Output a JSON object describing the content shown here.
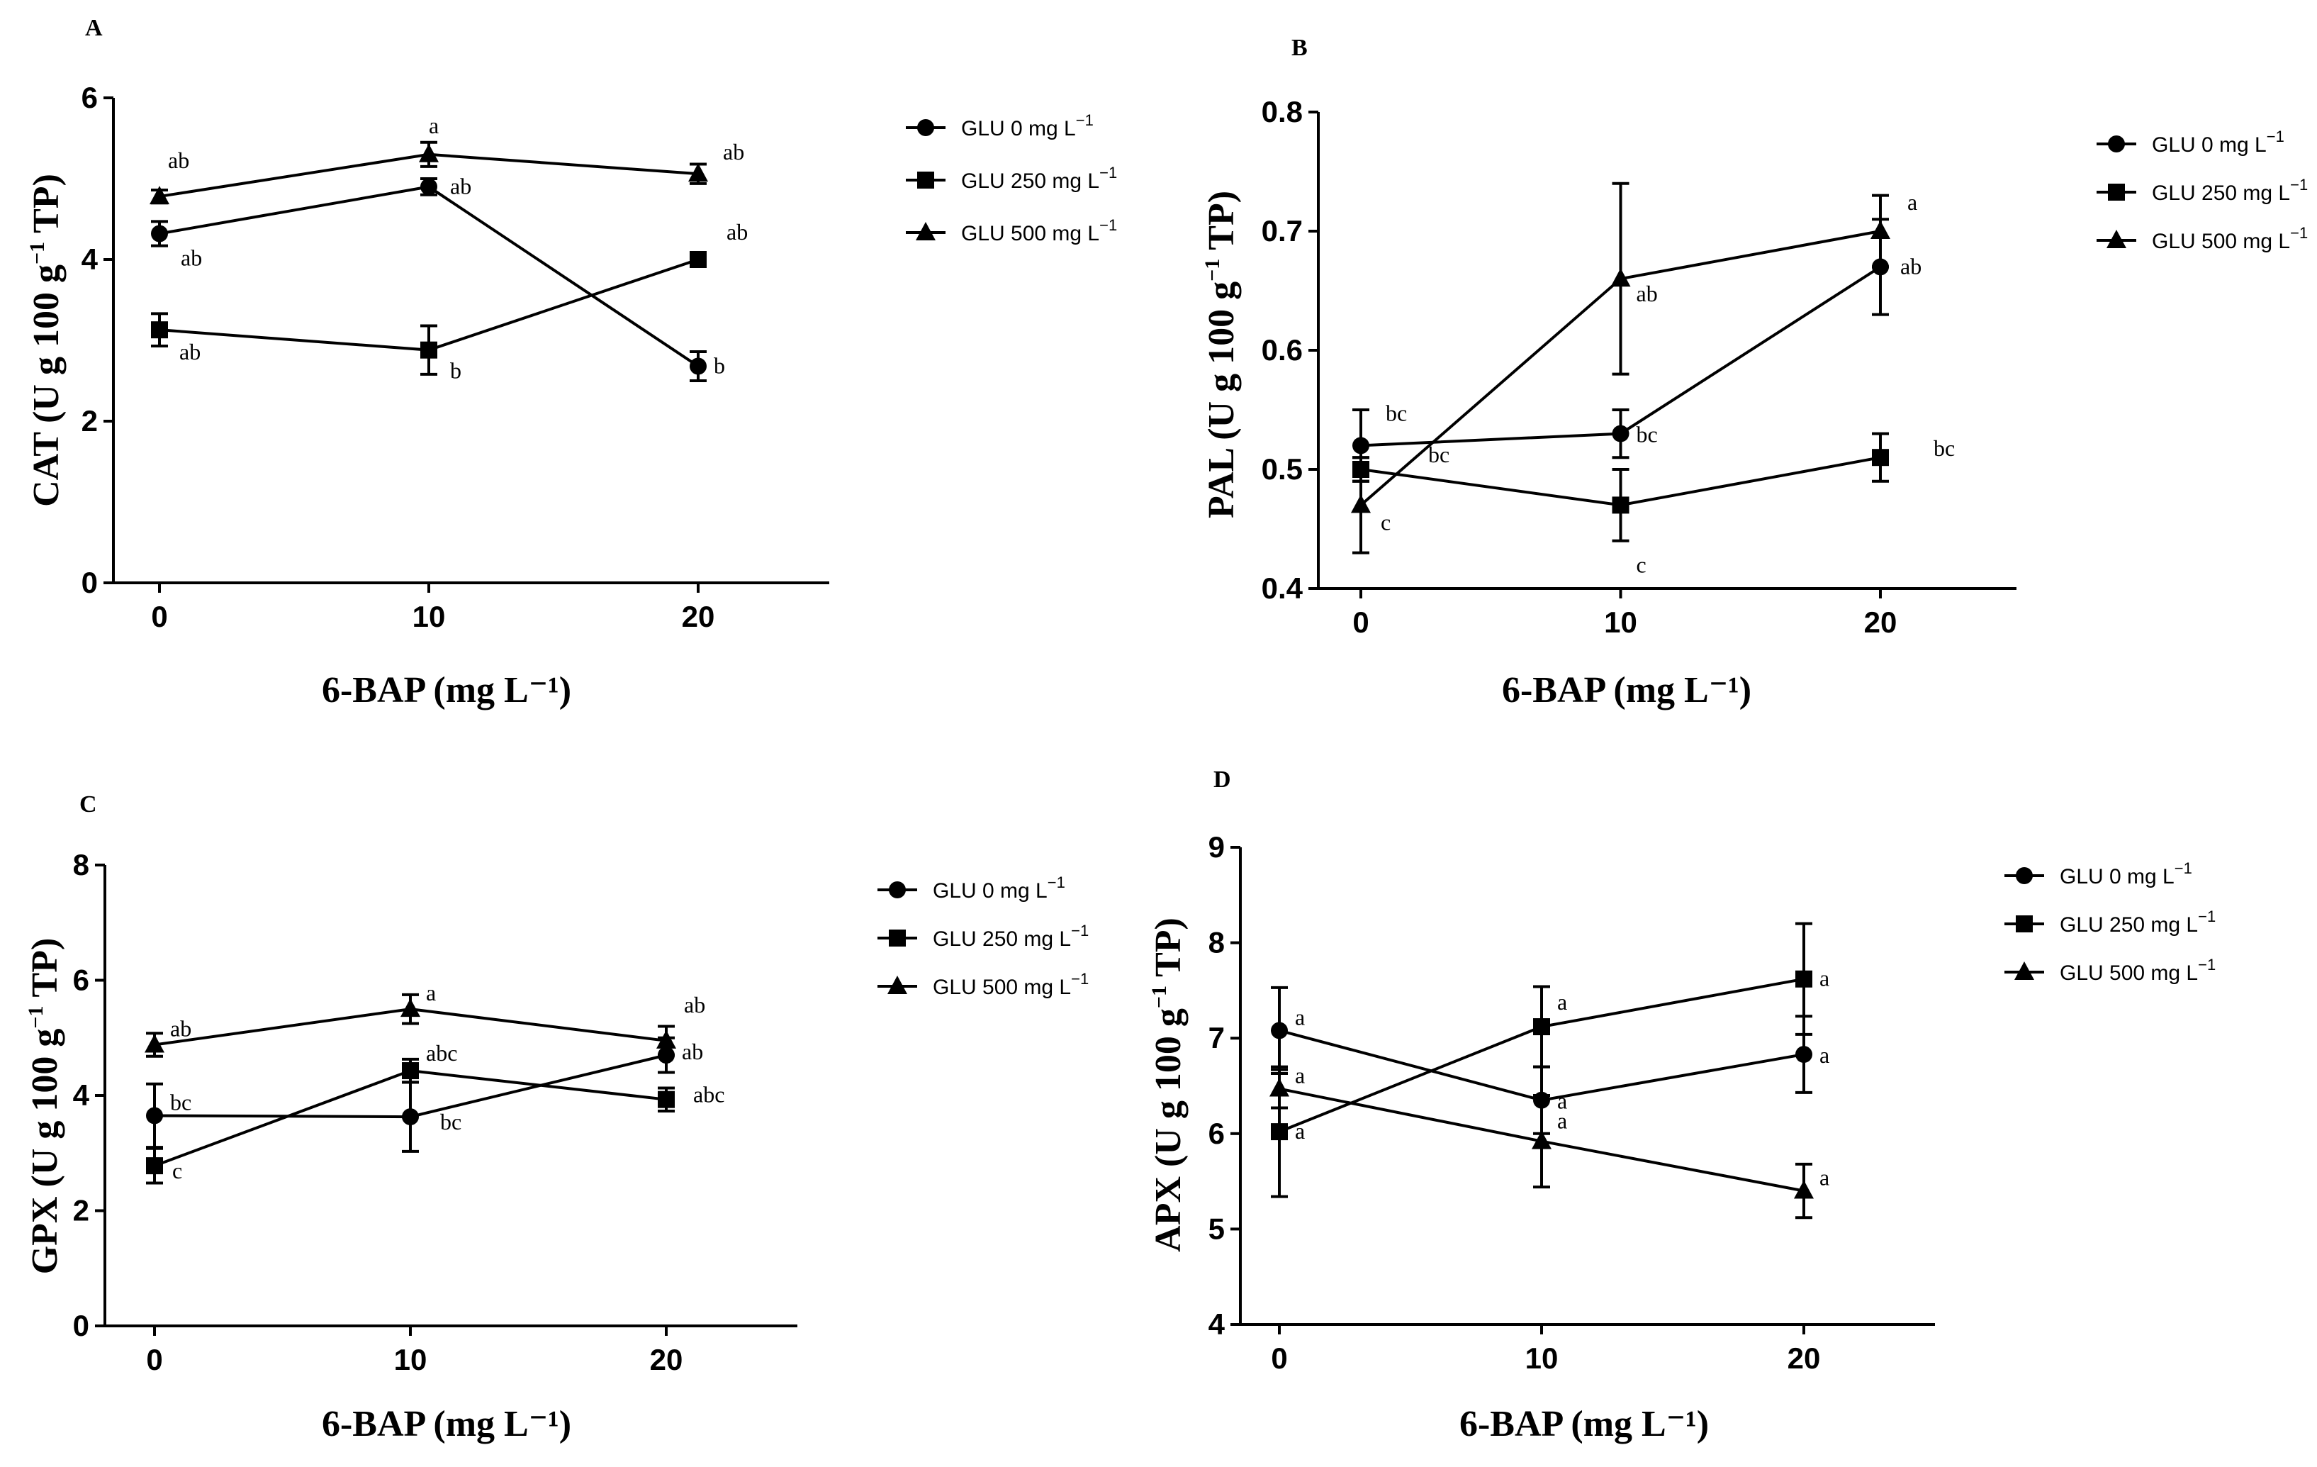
{
  "chart_data": [
    {
      "panel": "A",
      "type": "line",
      "xlabel": "6-BAP (mg L⁻¹)",
      "ylabel_main": "CAT (U g 100 g",
      "ylabel_sup": "−1",
      "ylabel_end": " TP)",
      "ylim": [
        0,
        6
      ],
      "yticks": [
        0,
        2,
        4,
        6
      ],
      "xticks": [
        0,
        10,
        20
      ],
      "x": [
        0,
        10,
        20
      ],
      "series": [
        {
          "name": "GLU 0 mg L",
          "sup": "−1",
          "marker": "circle",
          "values": [
            4.32,
            4.9,
            2.68
          ],
          "errors": [
            0.15,
            0.1,
            0.18
          ],
          "labels": [
            "ab",
            "ab",
            "b"
          ]
        },
        {
          "name": "GLU 250 mg L",
          "sup": "−1",
          "marker": "square",
          "values": [
            3.13,
            2.88,
            4.0
          ],
          "errors": [
            0.2,
            0.3,
            0.05
          ],
          "labels": [
            "ab",
            "b",
            "ab"
          ]
        },
        {
          "name": "GLU 500 mg L",
          "sup": "−1",
          "marker": "triangle",
          "values": [
            4.78,
            5.3,
            5.06
          ],
          "errors": [
            0.08,
            0.15,
            0.12
          ],
          "labels": [
            "ab",
            "a",
            "ab"
          ]
        }
      ]
    },
    {
      "panel": "B",
      "type": "line",
      "xlabel": "6-BAP (mg L⁻¹)",
      "ylabel_main": "PAL (U g 100 g",
      "ylabel_sup": "−1",
      "ylabel_end": " TP)",
      "ylim": [
        0.4,
        0.8
      ],
      "yticks": [
        0.4,
        0.5,
        0.6,
        0.7,
        0.8
      ],
      "xticks": [
        0,
        10,
        20
      ],
      "x": [
        0,
        10,
        20
      ],
      "series": [
        {
          "name": "GLU 0 mg L",
          "sup": "−1",
          "marker": "circle",
          "values": [
            0.52,
            0.53,
            0.67
          ],
          "errors": [
            0.03,
            0.02,
            0.04
          ],
          "labels": [
            "bc",
            "bc",
            "ab"
          ]
        },
        {
          "name": "GLU 250 mg L",
          "sup": "−1",
          "marker": "square",
          "values": [
            0.5,
            0.47,
            0.51
          ],
          "errors": [
            0.01,
            0.03,
            0.02
          ],
          "labels": [
            "bc",
            "c",
            "bc"
          ]
        },
        {
          "name": "GLU 500 mg L",
          "sup": "−1",
          "marker": "triangle",
          "values": [
            0.47,
            0.66,
            0.7
          ],
          "errors": [
            0.04,
            0.08,
            0.03
          ],
          "labels": [
            "c",
            "ab",
            "a"
          ]
        }
      ]
    },
    {
      "panel": "C",
      "type": "line",
      "xlabel": "6-BAP (mg L⁻¹)",
      "ylabel_main": "GPX (U g 100 g",
      "ylabel_sup": "−1",
      "ylabel_end": " TP)",
      "ylim": [
        0,
        8
      ],
      "yticks": [
        0,
        2,
        4,
        6,
        8
      ],
      "xticks": [
        0,
        10,
        20
      ],
      "x": [
        0,
        10,
        20
      ],
      "series": [
        {
          "name": "GLU 0 mg L",
          "sup": "−1",
          "marker": "circle",
          "values": [
            3.65,
            3.63,
            4.7
          ],
          "errors": [
            0.55,
            0.6,
            0.3
          ],
          "labels": [
            "bc",
            "bc",
            "ab"
          ]
        },
        {
          "name": "GLU 250 mg L",
          "sup": "−1",
          "marker": "square",
          "values": [
            2.78,
            4.43,
            3.93
          ],
          "errors": [
            0.3,
            0.2,
            0.2
          ],
          "labels": [
            "c",
            "abc",
            "abc"
          ]
        },
        {
          "name": "GLU 500 mg L",
          "sup": "−1",
          "marker": "triangle",
          "values": [
            4.88,
            5.5,
            4.95
          ],
          "errors": [
            0.2,
            0.25,
            0.25
          ],
          "labels": [
            "ab",
            "a",
            "ab"
          ]
        }
      ]
    },
    {
      "panel": "D",
      "type": "line",
      "xlabel": "6-BAP (mg L⁻¹)",
      "ylabel_main": "APX (U g 100 g",
      "ylabel_sup": "−1",
      "ylabel_end": " TP)",
      "ylim": [
        4,
        9
      ],
      "yticks": [
        4,
        5,
        6,
        7,
        8,
        9
      ],
      "xticks": [
        0,
        10,
        20
      ],
      "x": [
        0,
        10,
        20
      ],
      "series": [
        {
          "name": "GLU 0 mg L",
          "sup": "−1",
          "marker": "circle",
          "values": [
            7.08,
            6.35,
            6.83
          ],
          "errors": [
            0.45,
            0.35,
            0.4
          ],
          "labels": [
            "a",
            "a",
            "a"
          ]
        },
        {
          "name": "GLU 250 mg L",
          "sup": "−1",
          "marker": "square",
          "values": [
            6.02,
            7.12,
            7.62
          ],
          "errors": [
            0.68,
            0.42,
            0.58
          ],
          "labels": [
            "a",
            "a",
            "a"
          ]
        },
        {
          "name": "GLU 500 mg L",
          "sup": "−1",
          "marker": "triangle",
          "values": [
            6.47,
            5.92,
            5.4
          ],
          "errors": [
            0.2,
            0.48,
            0.28
          ],
          "labels": [
            "a",
            "a",
            "a"
          ]
        }
      ]
    }
  ]
}
